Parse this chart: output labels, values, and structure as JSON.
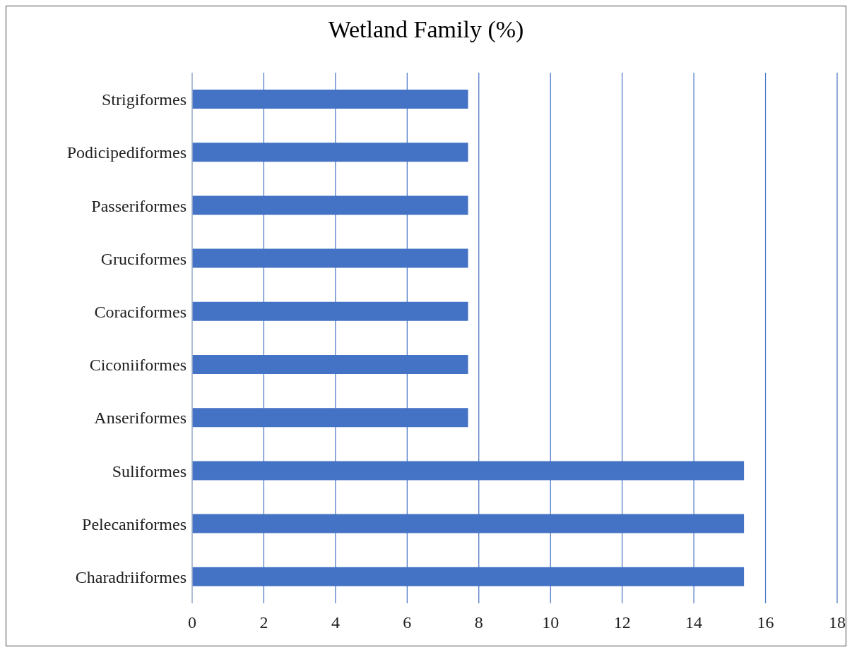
{
  "chart_data": {
    "type": "bar",
    "title": "Wetland Family (%)",
    "orientation": "horizontal",
    "categories": [
      "Strigiformes",
      "Podicipediformes",
      "Passeriformes",
      "Gruciformes",
      "Coraciformes",
      "Ciconiiformes",
      "Anseriformes",
      "Suliformes",
      "Pelecaniformes",
      "Charadriiformes"
    ],
    "values": [
      7.7,
      7.7,
      7.7,
      7.7,
      7.7,
      7.7,
      7.7,
      15.4,
      15.4,
      15.4
    ],
    "color": "#4472c4",
    "xlim": [
      0,
      18
    ],
    "xticks": [
      0,
      2,
      4,
      6,
      8,
      10,
      12,
      14,
      16,
      18
    ],
    "grid": "x"
  }
}
